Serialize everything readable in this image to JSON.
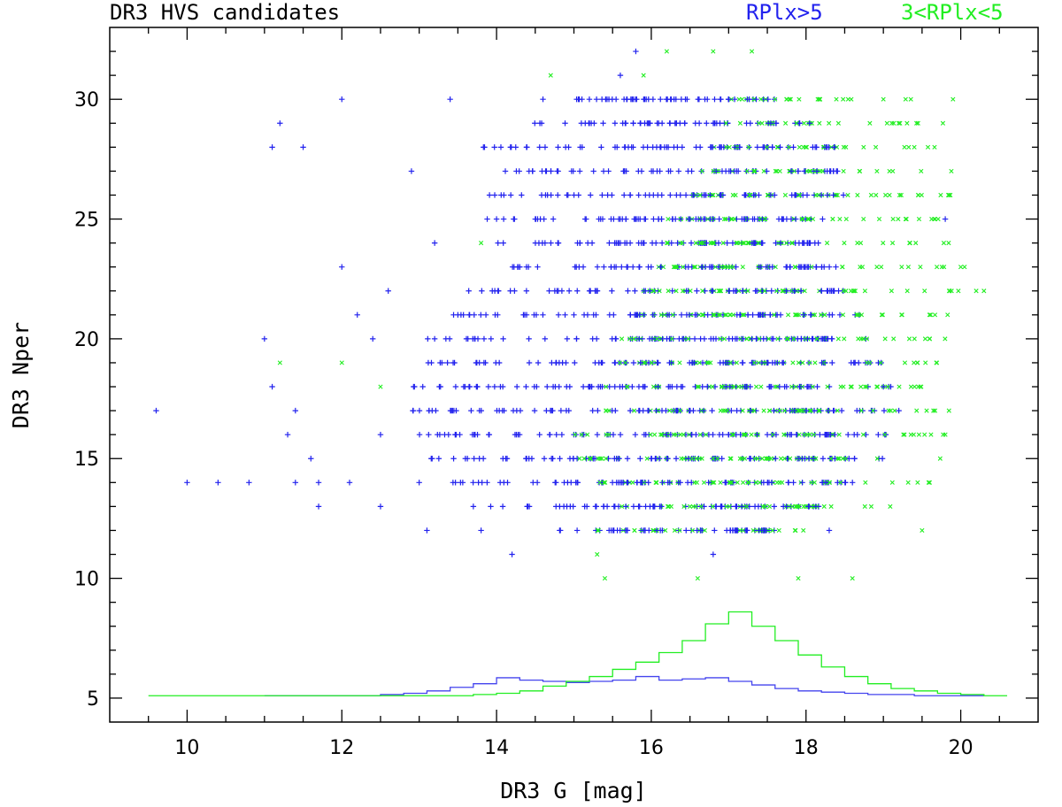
{
  "chart_data": {
    "type": "scatter",
    "title": "DR3 HVS candidates",
    "xlabel": "DR3 G [mag]",
    "ylabel": "DR3 Nper",
    "xlim": [
      9.0,
      21.0
    ],
    "ylim": [
      4.0,
      33.0
    ],
    "x_ticks": [
      10,
      12,
      14,
      16,
      18,
      20
    ],
    "x_tick_labels": [
      "10",
      "12",
      "14",
      "16",
      "18",
      "20"
    ],
    "y_ticks": [
      5,
      10,
      15,
      20,
      25,
      30
    ],
    "y_tick_labels": [
      "5",
      "10",
      "15",
      "20",
      "25",
      "30"
    ],
    "legend_position": "top-right, above plot",
    "grid": false,
    "series": [
      {
        "name": "RPlx>5",
        "color": "#2222ee",
        "marker": "plus",
        "points": [
          [
            9.6,
            17
          ],
          [
            10.0,
            14
          ],
          [
            10.4,
            14
          ],
          [
            10.8,
            14
          ],
          [
            11.0,
            20
          ],
          [
            11.1,
            28
          ],
          [
            11.2,
            29
          ],
          [
            11.1,
            18
          ],
          [
            11.3,
            16
          ],
          [
            11.4,
            14
          ],
          [
            11.4,
            17
          ],
          [
            11.5,
            28
          ],
          [
            11.6,
            15
          ],
          [
            11.7,
            14
          ],
          [
            11.7,
            13
          ],
          [
            12.0,
            23
          ],
          [
            12.0,
            30
          ],
          [
            12.1,
            14
          ],
          [
            12.2,
            21
          ],
          [
            12.4,
            20
          ],
          [
            12.5,
            13
          ],
          [
            12.5,
            16
          ],
          [
            12.6,
            22
          ],
          [
            12.9,
            27
          ],
          [
            13.0,
            14
          ],
          [
            13.1,
            12
          ],
          [
            13.2,
            24
          ],
          [
            13.4,
            30
          ],
          [
            13.5,
            21
          ],
          [
            13.7,
            13
          ],
          [
            13.8,
            12
          ],
          [
            14.2,
            11
          ],
          [
            14.0,
            25
          ],
          [
            14.3,
            23
          ],
          [
            14.6,
            30
          ],
          [
            14.8,
            24
          ],
          [
            15.0,
            21
          ],
          [
            15.2,
            29
          ],
          [
            15.6,
            31
          ],
          [
            15.8,
            32
          ],
          [
            15.9,
            12
          ],
          [
            16.2,
            28
          ],
          [
            16.5,
            25
          ],
          [
            16.8,
            11
          ],
          [
            17.0,
            22
          ],
          [
            17.3,
            20
          ],
          [
            17.5,
            16
          ],
          [
            17.9,
            27
          ],
          [
            18.3,
            12
          ],
          [
            18.6,
            14
          ],
          [
            19.0,
            18
          ],
          [
            19.2,
            17
          ],
          [
            19.8,
            25
          ]
        ]
      },
      {
        "name": "3<RPlx<5",
        "color": "#22ee22",
        "marker": "cross",
        "points": [
          [
            11.2,
            19
          ],
          [
            12.0,
            19
          ],
          [
            12.5,
            18
          ],
          [
            13.8,
            24
          ],
          [
            14.7,
            31
          ],
          [
            15.4,
            10
          ],
          [
            15.3,
            11
          ],
          [
            15.9,
            31
          ],
          [
            16.2,
            32
          ],
          [
            16.6,
            10
          ],
          [
            16.8,
            32
          ],
          [
            17.3,
            32
          ],
          [
            17.9,
            10
          ],
          [
            18.6,
            10
          ],
          [
            19.0,
            30
          ],
          [
            19.5,
            12
          ],
          [
            19.6,
            20
          ],
          [
            19.8,
            16
          ],
          [
            19.9,
            30
          ],
          [
            20.0,
            23
          ],
          [
            20.2,
            22
          ],
          [
            20.3,
            22
          ]
        ]
      }
    ],
    "bands": {
      "RPlx>5": {
        "x_range": [
          12.8,
          19.8
        ],
        "rows": [
          [
            12,
            14.8,
            17.6
          ],
          [
            13,
            13.9,
            18.2
          ],
          [
            14,
            13.4,
            18.6
          ],
          [
            15,
            13.1,
            19.0
          ],
          [
            16,
            13.0,
            19.2
          ],
          [
            17,
            12.9,
            19.2
          ],
          [
            18,
            12.9,
            19.1
          ],
          [
            19,
            13.0,
            19.0
          ],
          [
            20,
            13.1,
            18.9
          ],
          [
            21,
            13.4,
            18.7
          ],
          [
            22,
            13.6,
            18.5
          ],
          [
            23,
            13.8,
            18.4
          ],
          [
            24,
            14.0,
            18.2
          ],
          [
            25,
            13.8,
            18.3
          ],
          [
            26,
            13.9,
            18.5
          ],
          [
            27,
            14.1,
            18.6
          ],
          [
            28,
            13.6,
            18.4
          ],
          [
            29,
            14.4,
            18.1
          ],
          [
            30,
            14.9,
            17.6
          ]
        ]
      },
      "3<RPlx<5": {
        "x_range": [
          14.5,
          20.1
        ],
        "rows": [
          [
            12,
            15.2,
            18.0
          ],
          [
            13,
            15.4,
            19.2
          ],
          [
            14,
            15.2,
            19.6
          ],
          [
            15,
            15.0,
            19.8
          ],
          [
            16,
            15.0,
            19.9
          ],
          [
            17,
            15.1,
            19.9
          ],
          [
            18,
            15.3,
            19.8
          ],
          [
            19,
            15.5,
            19.7
          ],
          [
            20,
            15.6,
            19.8
          ],
          [
            21,
            15.7,
            19.9
          ],
          [
            22,
            15.8,
            20.0
          ],
          [
            23,
            16.0,
            20.1
          ],
          [
            24,
            16.2,
            19.9
          ],
          [
            25,
            16.2,
            19.8
          ],
          [
            26,
            16.4,
            20.0
          ],
          [
            27,
            16.6,
            19.9
          ],
          [
            28,
            16.8,
            19.8
          ],
          [
            29,
            16.9,
            19.8
          ],
          [
            30,
            17.0,
            19.6
          ]
        ]
      }
    },
    "histograms": [
      {
        "name": "RPlx>5",
        "color": "#4444ee",
        "bin_width": 0.3,
        "bins": [
          [
            11.0,
            5.1
          ],
          [
            11.3,
            5.1
          ],
          [
            11.6,
            5.1
          ],
          [
            11.9,
            5.1
          ],
          [
            12.2,
            5.1
          ],
          [
            12.5,
            5.15
          ],
          [
            12.8,
            5.2
          ],
          [
            13.1,
            5.3
          ],
          [
            13.4,
            5.45
          ],
          [
            13.7,
            5.6
          ],
          [
            14.0,
            5.85
          ],
          [
            14.3,
            5.75
          ],
          [
            14.6,
            5.7
          ],
          [
            14.9,
            5.65
          ],
          [
            15.2,
            5.7
          ],
          [
            15.5,
            5.75
          ],
          [
            15.8,
            5.9
          ],
          [
            16.1,
            5.75
          ],
          [
            16.4,
            5.8
          ],
          [
            16.7,
            5.85
          ],
          [
            17.0,
            5.7
          ],
          [
            17.3,
            5.55
          ],
          [
            17.6,
            5.4
          ],
          [
            17.9,
            5.3
          ],
          [
            18.2,
            5.25
          ],
          [
            18.5,
            5.2
          ],
          [
            18.8,
            5.15
          ],
          [
            19.1,
            5.15
          ],
          [
            19.4,
            5.1
          ],
          [
            19.7,
            5.1
          ],
          [
            20.0,
            5.1
          ]
        ]
      },
      {
        "name": "3<RPlx<5",
        "color": "#22ee22",
        "bin_width": 0.3,
        "bins": [
          [
            9.5,
            5.1
          ],
          [
            9.8,
            5.1
          ],
          [
            10.1,
            5.1
          ],
          [
            10.4,
            5.1
          ],
          [
            10.7,
            5.1
          ],
          [
            11.0,
            5.1
          ],
          [
            11.3,
            5.1
          ],
          [
            11.6,
            5.1
          ],
          [
            11.9,
            5.1
          ],
          [
            12.2,
            5.1
          ],
          [
            12.5,
            5.1
          ],
          [
            12.8,
            5.1
          ],
          [
            13.1,
            5.1
          ],
          [
            13.4,
            5.1
          ],
          [
            13.7,
            5.15
          ],
          [
            14.0,
            5.2
          ],
          [
            14.3,
            5.3
          ],
          [
            14.6,
            5.5
          ],
          [
            14.9,
            5.7
          ],
          [
            15.2,
            5.9
          ],
          [
            15.5,
            6.2
          ],
          [
            15.8,
            6.5
          ],
          [
            16.1,
            6.9
          ],
          [
            16.4,
            7.4
          ],
          [
            16.7,
            8.1
          ],
          [
            17.0,
            8.6
          ],
          [
            17.3,
            8.0
          ],
          [
            17.6,
            7.4
          ],
          [
            17.9,
            6.8
          ],
          [
            18.2,
            6.3
          ],
          [
            18.5,
            5.9
          ],
          [
            18.8,
            5.6
          ],
          [
            19.1,
            5.4
          ],
          [
            19.4,
            5.3
          ],
          [
            19.7,
            5.2
          ],
          [
            20.0,
            5.15
          ],
          [
            20.3,
            5.1
          ]
        ]
      }
    ]
  },
  "legend": {
    "blue_label": "RPlx>5",
    "green_label": "3<RPlx<5"
  }
}
